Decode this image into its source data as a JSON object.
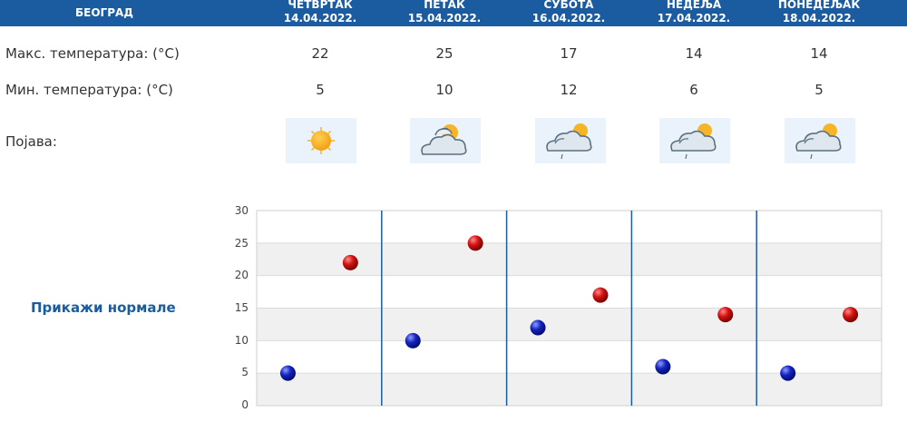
{
  "header": {
    "city": "БЕОГРАД",
    "days": [
      {
        "weekday": "ЧЕТВРТАК",
        "date": "14.04.2022."
      },
      {
        "weekday": "ПЕТАК",
        "date": "15.04.2022."
      },
      {
        "weekday": "СУБОТА",
        "date": "16.04.2022."
      },
      {
        "weekday": "НЕДЕЉА",
        "date": "17.04.2022."
      },
      {
        "weekday": "ПОНЕДЕЉАК",
        "date": "18.04.2022."
      }
    ]
  },
  "rows": {
    "max_label": "Макс. температура: (°C)",
    "min_label": "Мин. температура: (°C)",
    "phenomenon_label": "Појава:",
    "max": [
      "22",
      "25",
      "17",
      "14",
      "14"
    ],
    "min": [
      "5",
      "10",
      "12",
      "6",
      "5"
    ],
    "icons": [
      "sun-icon",
      "sun-behind-clouds-icon",
      "cloud-sun-drizzle-icon",
      "cloud-sun-drizzle-icon",
      "cloud-sun-drizzle-icon"
    ]
  },
  "normals_link": "Прикажи нормале",
  "colors": {
    "header_bg": "#1b5ca0",
    "max_dot": "#c40a0a",
    "min_dot": "#0a1aa8",
    "divider": "#1b5ca0"
  },
  "chart_data": {
    "type": "scatter",
    "categories": [
      "14.04.2022.",
      "15.04.2022.",
      "16.04.2022.",
      "17.04.2022.",
      "18.04.2022."
    ],
    "series": [
      {
        "values": [
          22,
          25,
          17,
          14,
          14
        ]
      },
      {
        "values": [
          5,
          10,
          12,
          6,
          5
        ]
      }
    ],
    "yticks": [
      "0",
      "5",
      "10",
      "15",
      "20",
      "25",
      "30"
    ],
    "ylim": [
      0,
      30
    ],
    "grid": true,
    "alternating_bands": true
  }
}
